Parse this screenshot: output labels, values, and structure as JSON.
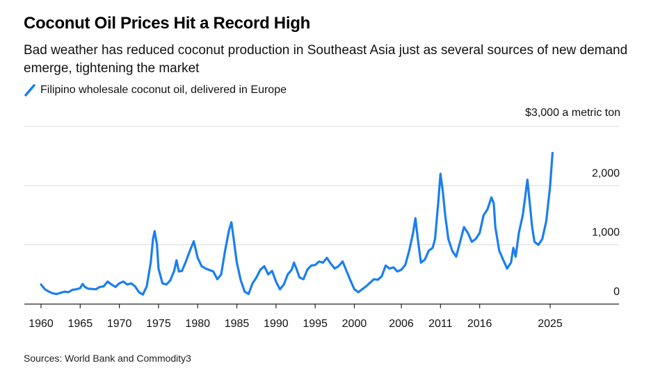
{
  "chart_data": {
    "type": "line",
    "title": "Coconut Oil Prices Hit a Record High",
    "subtitle": "Bad weather has reduced coconut production in Southeast Asia just as several sources of new demand emerge, tightening the market",
    "ylabel": "$3,000 a metric ton",
    "ylim": [
      0,
      3000
    ],
    "xlim": [
      1960,
      2033
    ],
    "grid": true,
    "legend_placement": "top-left",
    "y_ticks": [
      {
        "value": 0,
        "label": "0"
      },
      {
        "value": 1000,
        "label": "1,000"
      },
      {
        "value": 2000,
        "label": "2,000"
      }
    ],
    "x_ticks": [
      {
        "value": 1960,
        "label": "1960"
      },
      {
        "value": 1965,
        "label": "1965"
      },
      {
        "value": 1970,
        "label": "1970"
      },
      {
        "value": 1975,
        "label": "1975"
      },
      {
        "value": 1980,
        "label": "1980"
      },
      {
        "value": 1985,
        "label": "1985"
      },
      {
        "value": 1990,
        "label": "1990"
      },
      {
        "value": 1995,
        "label": "1995"
      },
      {
        "value": 2000,
        "label": "2000"
      },
      {
        "value": 2006,
        "label": "2006"
      },
      {
        "value": 2011,
        "label": "2011"
      },
      {
        "value": 2016,
        "label": "2016"
      },
      {
        "value": 2025,
        "label": "2025"
      }
    ],
    "series": [
      {
        "name": "Filipino wholesale coconut oil, delivered in Europe",
        "color": "#1a7ef2",
        "points": [
          [
            1960,
            330
          ],
          [
            1960.5,
            250
          ],
          [
            1961,
            210
          ],
          [
            1961.5,
            180
          ],
          [
            1962,
            170
          ],
          [
            1962.5,
            190
          ],
          [
            1963,
            210
          ],
          [
            1963.5,
            200
          ],
          [
            1964,
            240
          ],
          [
            1964.5,
            250
          ],
          [
            1965,
            270
          ],
          [
            1965.3,
            340
          ],
          [
            1965.6,
            290
          ],
          [
            1966,
            260
          ],
          [
            1967,
            250
          ],
          [
            1967.5,
            290
          ],
          [
            1968,
            300
          ],
          [
            1968.5,
            380
          ],
          [
            1969,
            330
          ],
          [
            1969.5,
            290
          ],
          [
            1970,
            350
          ],
          [
            1970.5,
            380
          ],
          [
            1971,
            330
          ],
          [
            1971.5,
            350
          ],
          [
            1972,
            300
          ],
          [
            1972.5,
            200
          ],
          [
            1973,
            160
          ],
          [
            1973.5,
            300
          ],
          [
            1974,
            700
          ],
          [
            1974.3,
            1100
          ],
          [
            1974.5,
            1230
          ],
          [
            1974.8,
            1000
          ],
          [
            1975,
            600
          ],
          [
            1975.5,
            350
          ],
          [
            1976,
            330
          ],
          [
            1976.5,
            400
          ],
          [
            1977,
            560
          ],
          [
            1977.3,
            740
          ],
          [
            1977.6,
            550
          ],
          [
            1978,
            560
          ],
          [
            1978.5,
            720
          ],
          [
            1979,
            900
          ],
          [
            1979.5,
            1060
          ],
          [
            1980,
            780
          ],
          [
            1980.5,
            640
          ],
          [
            1981,
            600
          ],
          [
            1982,
            550
          ],
          [
            1982.5,
            420
          ],
          [
            1983,
            500
          ],
          [
            1983.5,
            900
          ],
          [
            1984,
            1250
          ],
          [
            1984.3,
            1380
          ],
          [
            1984.6,
            1100
          ],
          [
            1985,
            700
          ],
          [
            1985.5,
            400
          ],
          [
            1986,
            210
          ],
          [
            1986.5,
            170
          ],
          [
            1987,
            350
          ],
          [
            1987.5,
            450
          ],
          [
            1988,
            580
          ],
          [
            1988.5,
            640
          ],
          [
            1989,
            500
          ],
          [
            1989.5,
            560
          ],
          [
            1990,
            380
          ],
          [
            1990.5,
            250
          ],
          [
            1991,
            330
          ],
          [
            1991.5,
            500
          ],
          [
            1992,
            580
          ],
          [
            1992.3,
            700
          ],
          [
            1992.6,
            600
          ],
          [
            1993,
            450
          ],
          [
            1993.5,
            420
          ],
          [
            1994,
            580
          ],
          [
            1994.5,
            650
          ],
          [
            1995,
            660
          ],
          [
            1995.5,
            720
          ],
          [
            1996,
            700
          ],
          [
            1996.5,
            780
          ],
          [
            1997,
            680
          ],
          [
            1997.5,
            600
          ],
          [
            1998,
            640
          ],
          [
            1998.5,
            720
          ],
          [
            1999,
            560
          ],
          [
            1999.5,
            400
          ],
          [
            2000,
            250
          ],
          [
            2000.5,
            200
          ],
          [
            2001,
            250
          ],
          [
            2001.5,
            300
          ],
          [
            2002,
            360
          ],
          [
            2002.5,
            420
          ],
          [
            2003,
            410
          ],
          [
            2003.5,
            470
          ],
          [
            2004,
            650
          ],
          [
            2004.5,
            600
          ],
          [
            2005,
            620
          ],
          [
            2005.5,
            550
          ],
          [
            2006,
            580
          ],
          [
            2006.5,
            660
          ],
          [
            2007,
            900
          ],
          [
            2007.5,
            1200
          ],
          [
            2007.8,
            1450
          ],
          [
            2008.1,
            1100
          ],
          [
            2008.5,
            700
          ],
          [
            2009,
            750
          ],
          [
            2009.5,
            900
          ],
          [
            2010,
            950
          ],
          [
            2010.3,
            1100
          ],
          [
            2010.7,
            1700
          ],
          [
            2011,
            2200
          ],
          [
            2011.3,
            1900
          ],
          [
            2011.6,
            1500
          ],
          [
            2012,
            1100
          ],
          [
            2012.5,
            900
          ],
          [
            2013,
            800
          ],
          [
            2013.5,
            1050
          ],
          [
            2014,
            1300
          ],
          [
            2014.5,
            1200
          ],
          [
            2015,
            1050
          ],
          [
            2015.5,
            1100
          ],
          [
            2016,
            1200
          ],
          [
            2016.5,
            1500
          ],
          [
            2017,
            1600
          ],
          [
            2017.5,
            1800
          ],
          [
            2017.8,
            1700
          ],
          [
            2018,
            1300
          ],
          [
            2018.5,
            900
          ],
          [
            2019,
            750
          ],
          [
            2019.5,
            600
          ],
          [
            2020,
            700
          ],
          [
            2020.3,
            950
          ],
          [
            2020.6,
            800
          ],
          [
            2021,
            1200
          ],
          [
            2021.5,
            1500
          ],
          [
            2021.8,
            1800
          ],
          [
            2022.1,
            2100
          ],
          [
            2022.4,
            1700
          ],
          [
            2022.7,
            1300
          ],
          [
            2023,
            1050
          ],
          [
            2023.5,
            1000
          ],
          [
            2024,
            1100
          ],
          [
            2024.5,
            1400
          ],
          [
            2025,
            2000
          ],
          [
            2025.3,
            2550
          ]
        ]
      }
    ],
    "source": "Sources: World Bank and Commodity3"
  }
}
